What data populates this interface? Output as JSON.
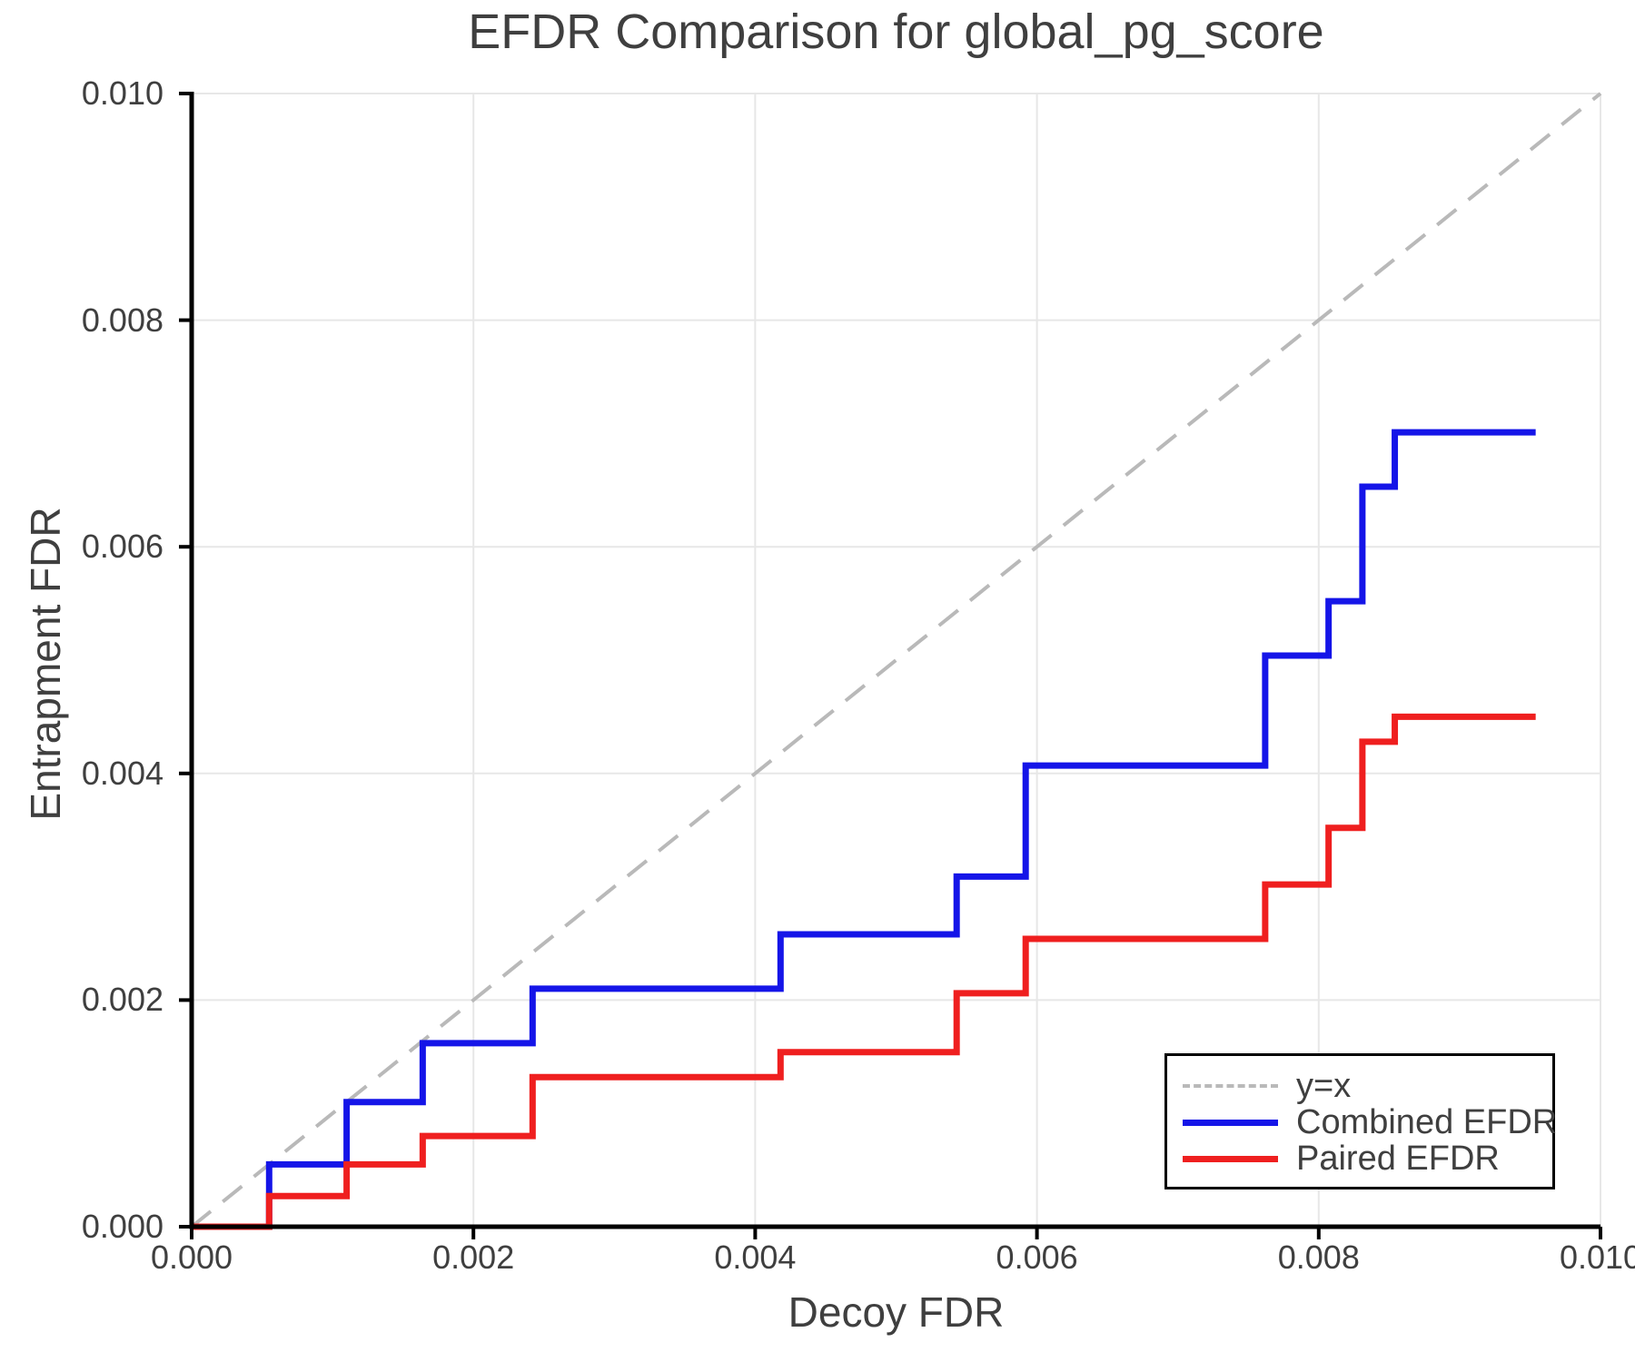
{
  "figure": {
    "background": "#ffffff",
    "text_color": "#3f3f3f",
    "axis_color": "#000000",
    "grid_color": "#e7e7e7"
  },
  "chart_data": {
    "type": "line",
    "subtype": "step-post",
    "title": "EFDR Comparison for global_pg_score",
    "xlabel": "Decoy FDR",
    "ylabel": "Entrapment FDR",
    "xlim": [
      0.0,
      0.01
    ],
    "ylim": [
      0.0,
      0.01
    ],
    "grid": true,
    "xticks": {
      "values": [
        0.0,
        0.002,
        0.004,
        0.006,
        0.008,
        0.01
      ],
      "labels": [
        "0.000",
        "0.002",
        "0.004",
        "0.006",
        "0.008",
        "0.010"
      ]
    },
    "yticks": {
      "values": [
        0.0,
        0.002,
        0.004,
        0.006,
        0.008,
        0.01
      ],
      "labels": [
        "0.000",
        "0.002",
        "0.004",
        "0.006",
        "0.008",
        "0.010"
      ]
    },
    "reference": {
      "label": "y=x",
      "color": "#b9b9b9",
      "dashed": true,
      "from": [
        0.0,
        0.0
      ],
      "to": [
        0.01,
        0.01
      ]
    },
    "series": [
      {
        "name": "Combined EFDR",
        "color": "#1515e8",
        "x": [
          0.0,
          0.00055,
          0.0011,
          0.00164,
          0.00242,
          0.00418,
          0.00543,
          0.00592,
          0.00762,
          0.00807,
          0.00831,
          0.00854
        ],
        "y": [
          0.0,
          0.00055,
          0.0011,
          0.00162,
          0.0021,
          0.00258,
          0.00309,
          0.00407,
          0.00504,
          0.00552,
          0.00653,
          0.00701
        ],
        "x_end": 0.00954
      },
      {
        "name": "Paired EFDR",
        "color": "#ef1f1f",
        "x": [
          0.0,
          0.00055,
          0.0011,
          0.00164,
          0.00242,
          0.00418,
          0.00543,
          0.00592,
          0.00762,
          0.00807,
          0.00831,
          0.00854
        ],
        "y": [
          0.0,
          0.00027,
          0.00055,
          0.0008,
          0.00132,
          0.00154,
          0.00206,
          0.00254,
          0.00302,
          0.00352,
          0.00428,
          0.0045
        ],
        "x_end": 0.00954
      }
    ],
    "legend": {
      "position": "lower right",
      "entries": [
        {
          "label": "y=x",
          "color": "#b9b9b9",
          "style": "dashed"
        },
        {
          "label": "Combined EFDR",
          "color": "#1515e8",
          "style": "solid"
        },
        {
          "label": "Paired EFDR",
          "color": "#ef1f1f",
          "style": "solid"
        }
      ]
    }
  }
}
